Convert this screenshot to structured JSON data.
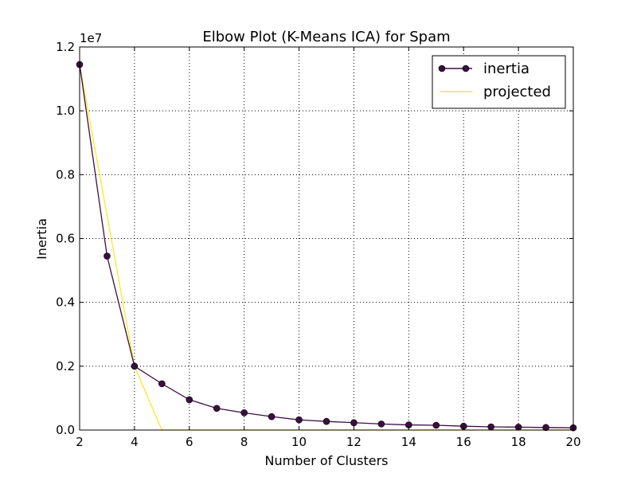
{
  "chart_data": {
    "type": "line",
    "title": "Elbow Plot (K-Means ICA) for Spam",
    "xlabel": "Number of Clusters",
    "ylabel": "Inertia",
    "y_offset_label": "1e7",
    "xlim": [
      2,
      20
    ],
    "ylim": [
      0,
      12000000
    ],
    "x_ticks": [
      2,
      4,
      6,
      8,
      10,
      12,
      14,
      16,
      18,
      20
    ],
    "x_tick_labels": [
      "2",
      "4",
      "6",
      "8",
      "10",
      "12",
      "14",
      "16",
      "18",
      "20"
    ],
    "y_ticks": [
      0,
      2000000,
      4000000,
      6000000,
      8000000,
      10000000,
      12000000
    ],
    "y_tick_labels": [
      "0.0",
      "0.2",
      "0.4",
      "0.6",
      "0.8",
      "1.0",
      "1.2"
    ],
    "grid": true,
    "legend_position": "top-right",
    "series": [
      {
        "name": "inertia",
        "color": "#3b0f3f",
        "marker": "circle",
        "x": [
          2,
          3,
          4,
          5,
          6,
          7,
          8,
          9,
          10,
          11,
          12,
          13,
          14,
          15,
          16,
          17,
          18,
          19,
          20
        ],
        "values": [
          11450000,
          5450000,
          2000000,
          1450000,
          950000,
          680000,
          540000,
          420000,
          320000,
          270000,
          230000,
          190000,
          160000,
          150000,
          120000,
          100000,
          90000,
          80000,
          70000
        ]
      },
      {
        "name": "projected",
        "color": "#fde725",
        "marker": "none",
        "x": [
          2,
          3,
          4,
          5,
          6,
          7,
          8,
          9,
          10,
          11,
          12,
          13,
          14,
          15,
          16,
          17,
          18,
          19,
          20
        ],
        "values": [
          11450000,
          6725000,
          2000000,
          0,
          0,
          0,
          0,
          0,
          0,
          0,
          0,
          0,
          0,
          0,
          0,
          0,
          0,
          0,
          0
        ]
      }
    ]
  }
}
